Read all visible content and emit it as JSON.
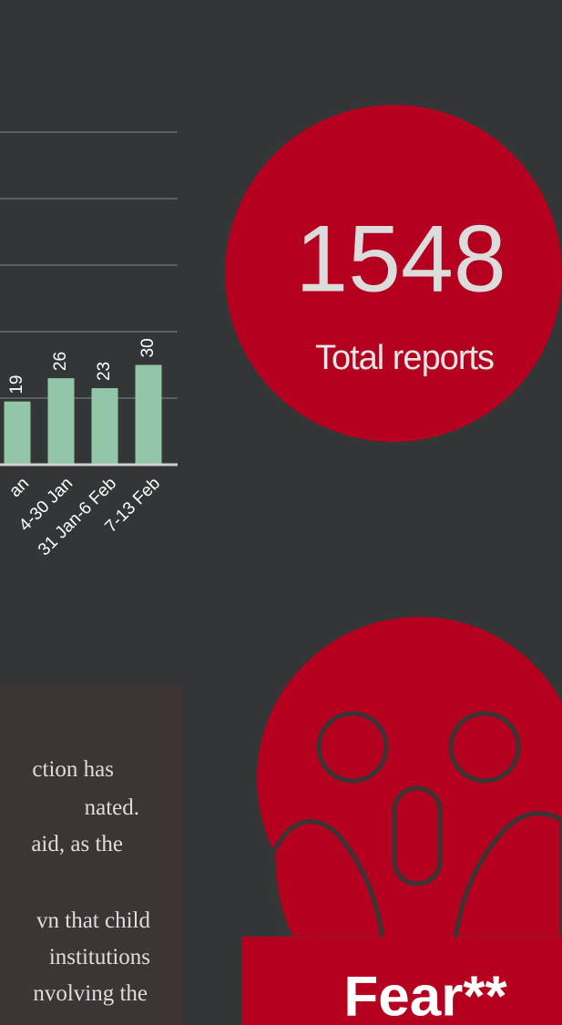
{
  "chart_data": {
    "type": "bar",
    "categories": [
      "an",
      "4-30 Jan",
      "31 Jan-6 Feb",
      "7-13 Feb"
    ],
    "values": [
      19,
      26,
      23,
      30
    ],
    "color": "#93c5a8",
    "ylim": [
      0,
      100
    ],
    "yticks": [
      20,
      40,
      60,
      80,
      100
    ],
    "grid": true
  },
  "stat": {
    "value": "1548",
    "label": "Total reports"
  },
  "text_box": {
    "lines": [
      "ction has",
      "nated.",
      "aid, as the",
      "vn that child",
      "institutions",
      "nvolving the"
    ]
  },
  "emotion": {
    "label": "Fear**"
  }
}
